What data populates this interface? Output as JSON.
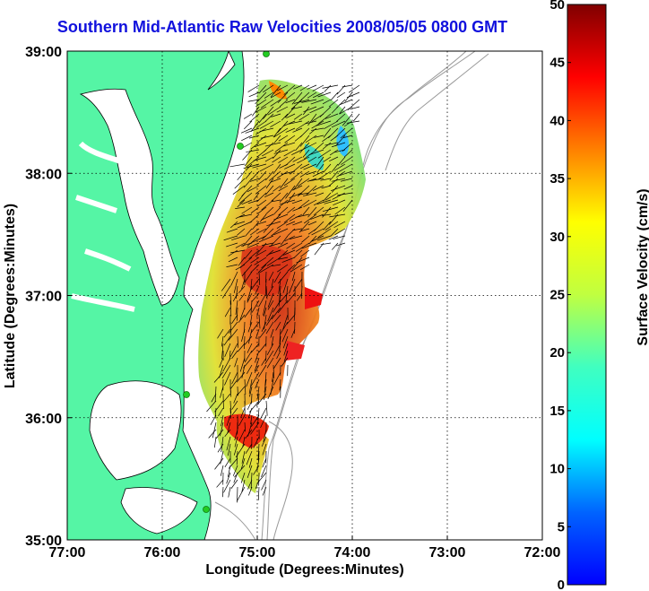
{
  "title": "Southern Mid-Atlantic Raw Velocities 2008/05/05 0800 GMT",
  "map": {
    "xlabel": "Longitude (Degrees:Minutes)",
    "ylabel": "Latitude (Degrees:Minutes)",
    "lon_ticks": [
      "77:00",
      "76:00",
      "75:00",
      "74:00",
      "73:00",
      "72:00"
    ],
    "lat_ticks": [
      "39:00",
      "38:00",
      "37:00",
      "36:00",
      "35:00"
    ],
    "lon_range": [
      -77,
      -72
    ],
    "lat_range": [
      35,
      39
    ],
    "grid": true,
    "land_color": "#55f5a5",
    "coast_color": "#000000",
    "bathy_color": "#9a9a9a",
    "station_color": "#22cc22"
  },
  "colorbar": {
    "label": "Surface Velocity (cm/s)",
    "ticks": [
      "0",
      "5",
      "10",
      "15",
      "20",
      "25",
      "30",
      "35",
      "40",
      "45",
      "50"
    ],
    "range": [
      0,
      50
    ],
    "colormap": "jet"
  }
}
